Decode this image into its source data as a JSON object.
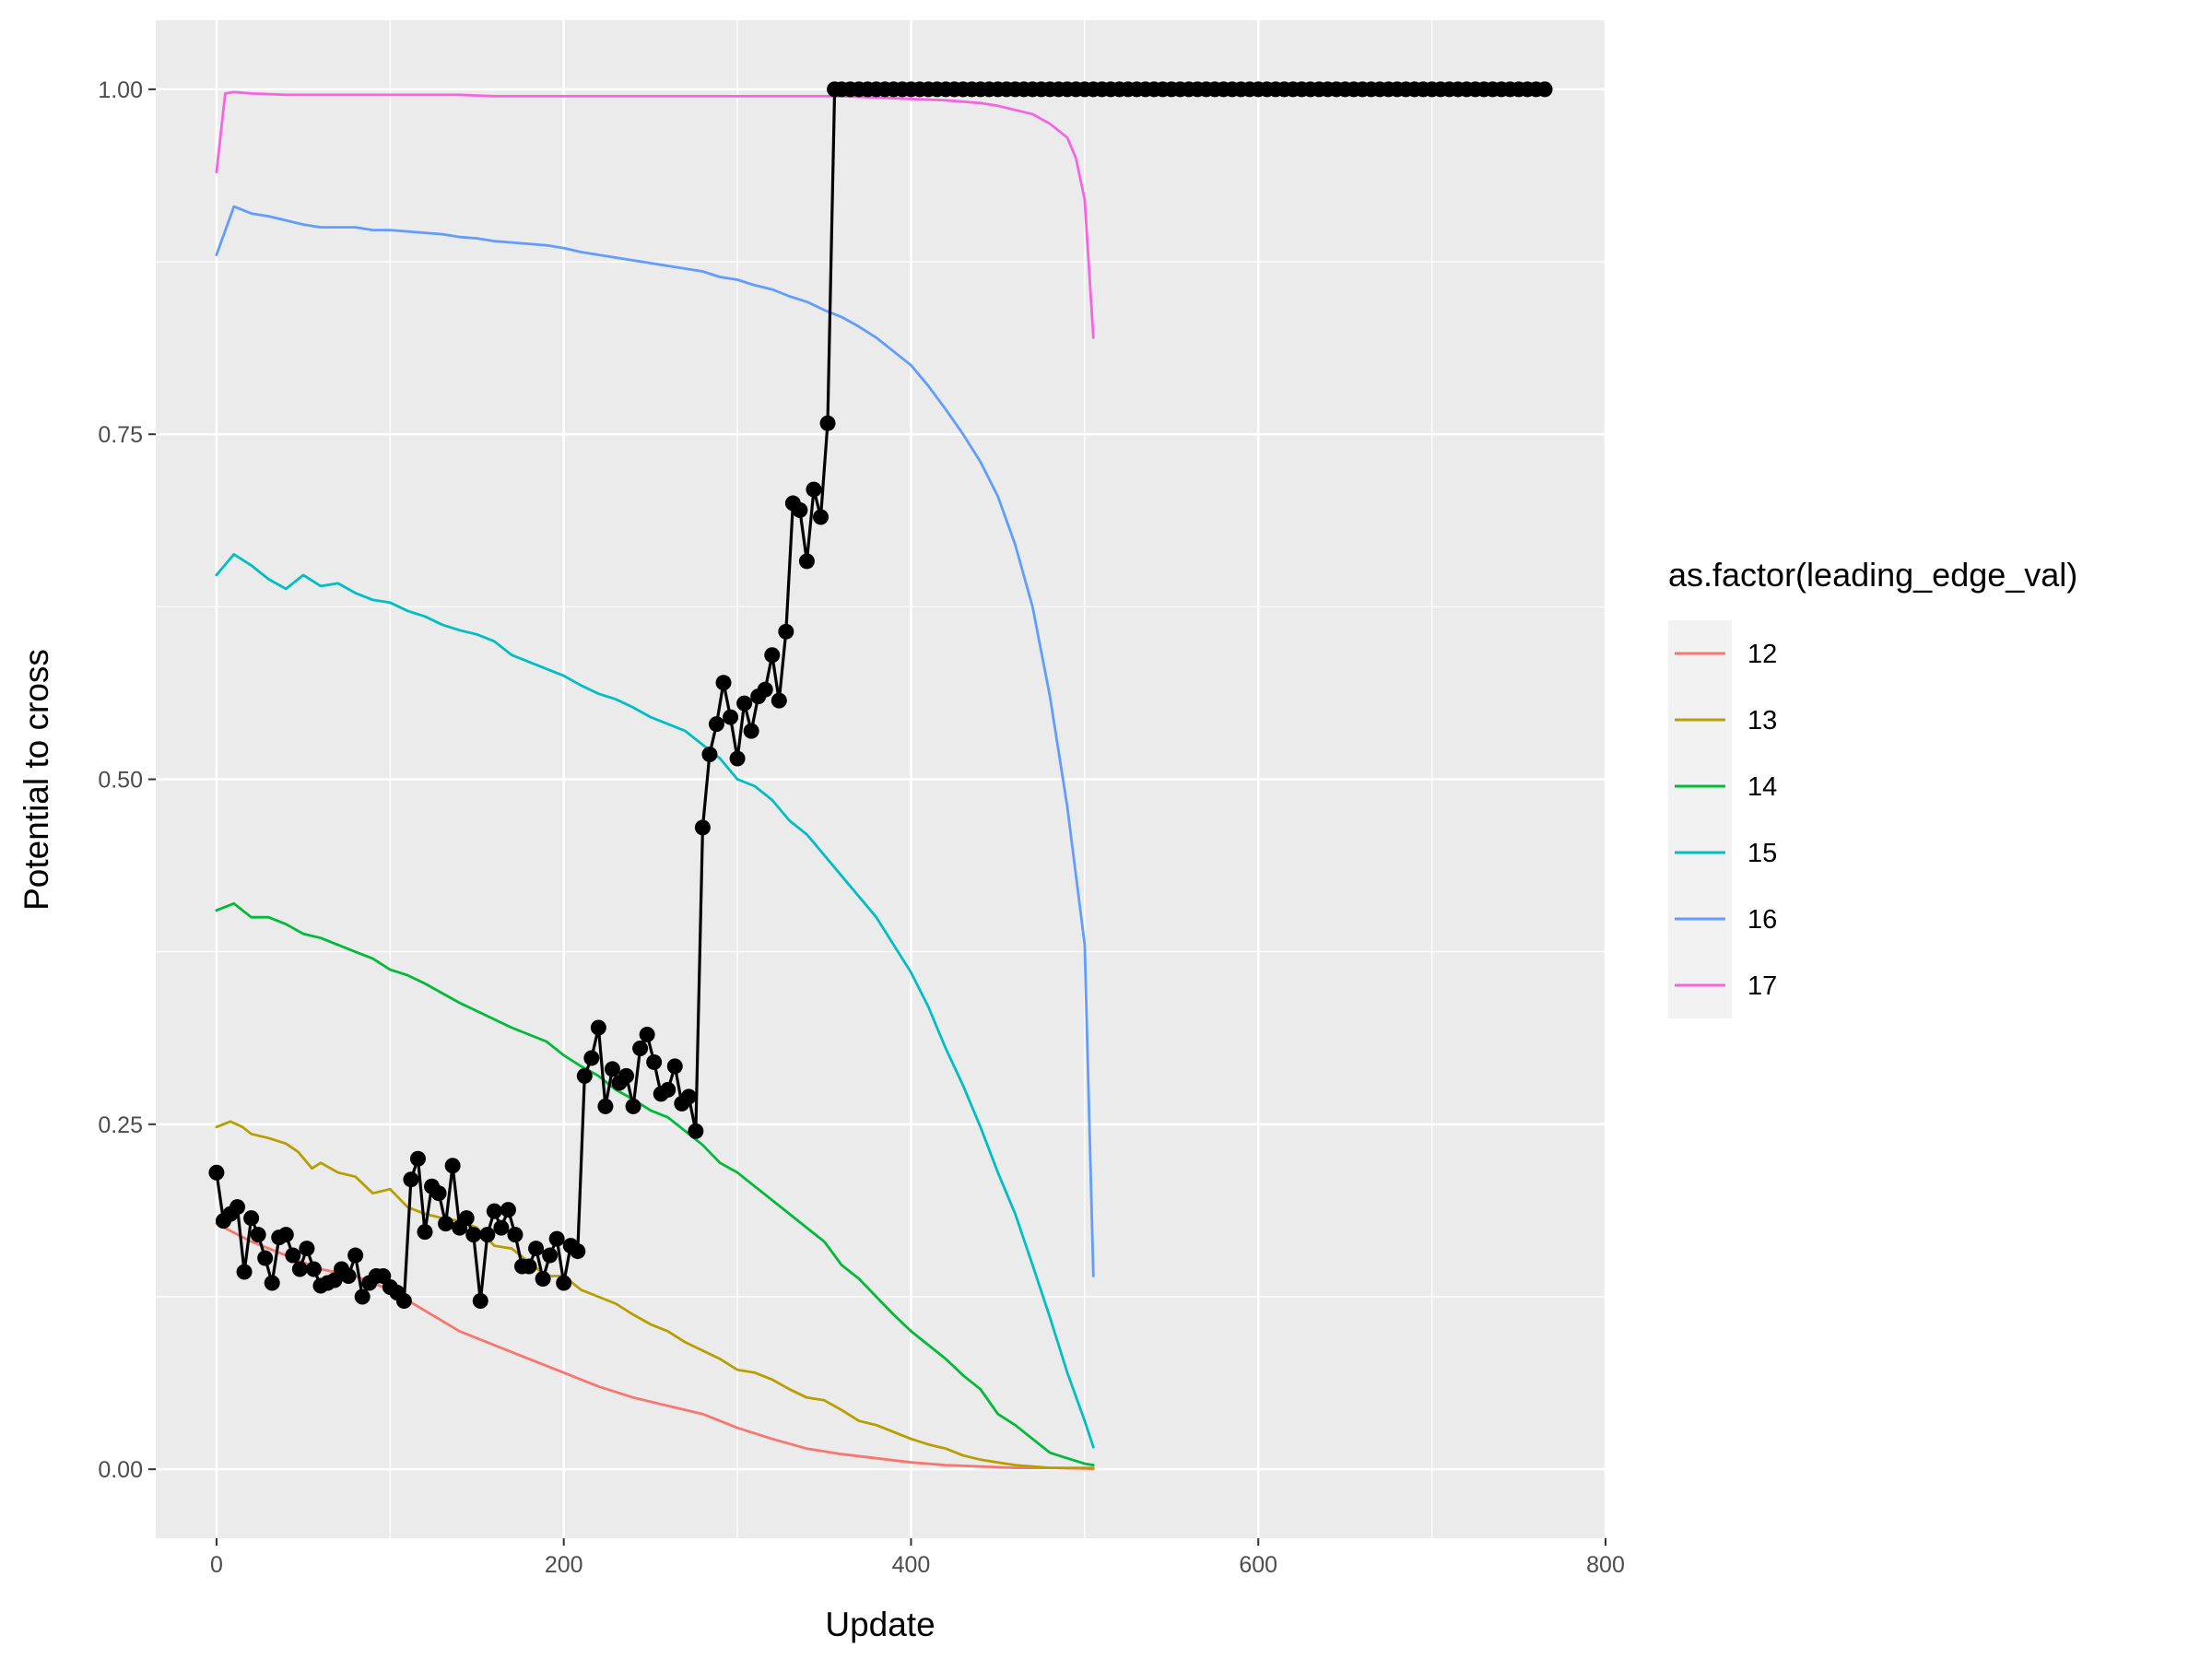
{
  "chart_data": {
    "type": "line",
    "xlabel": "Update",
    "ylabel": "Potential to cross",
    "xlim": [
      -35,
      800
    ],
    "ylim": [
      -0.05,
      1.05
    ],
    "x_ticks": [
      0,
      200,
      400,
      600,
      800
    ],
    "x_tick_labels": [
      "0",
      "200",
      "400",
      "600",
      "800"
    ],
    "y_ticks": [
      0,
      0.25,
      0.5,
      0.75,
      1.0
    ],
    "y_tick_labels": [
      "0.00",
      "0.25",
      "0.50",
      "0.75",
      "1.00"
    ],
    "grid": true,
    "legend": {
      "title": "as.factor(leading_edge_val)",
      "position": "right"
    },
    "series": [
      {
        "name": "12",
        "color": "#F8766D",
        "x": [
          0,
          20,
          40,
          60,
          80,
          100,
          120,
          140,
          160,
          180,
          200,
          220,
          240,
          260,
          280,
          300,
          320,
          340,
          360,
          380,
          400,
          420,
          440,
          460,
          480,
          500,
          505
        ],
        "y": [
          0.178,
          0.165,
          0.155,
          0.145,
          0.14,
          0.13,
          0.115,
          0.1,
          0.09,
          0.08,
          0.07,
          0.06,
          0.052,
          0.046,
          0.04,
          0.03,
          0.022,
          0.015,
          0.011,
          0.008,
          0.005,
          0.003,
          0.002,
          0.001,
          0.001,
          0.0005,
          0.0003
        ]
      },
      {
        "name": "13",
        "color": "#B79F00",
        "x": [
          0,
          8,
          15,
          20,
          30,
          40,
          47,
          55,
          60,
          70,
          80,
          90,
          100,
          110,
          120,
          130,
          140,
          150,
          160,
          170,
          180,
          190,
          200,
          210,
          220,
          230,
          240,
          250,
          260,
          270,
          280,
          290,
          300,
          310,
          320,
          330,
          340,
          350,
          360,
          370,
          380,
          390,
          400,
          410,
          420,
          430,
          440,
          450,
          460,
          470,
          480,
          490,
          500,
          505
        ],
        "y": [
          0.248,
          0.252,
          0.248,
          0.243,
          0.24,
          0.236,
          0.23,
          0.218,
          0.222,
          0.215,
          0.212,
          0.2,
          0.203,
          0.19,
          0.185,
          0.182,
          0.18,
          0.175,
          0.162,
          0.16,
          0.15,
          0.14,
          0.14,
          0.13,
          0.125,
          0.12,
          0.112,
          0.105,
          0.1,
          0.092,
          0.086,
          0.08,
          0.072,
          0.07,
          0.065,
          0.058,
          0.052,
          0.05,
          0.043,
          0.035,
          0.032,
          0.027,
          0.022,
          0.018,
          0.015,
          0.01,
          0.007,
          0.005,
          0.003,
          0.002,
          0.001,
          0.001,
          0.001,
          0.001
        ]
      },
      {
        "name": "14",
        "color": "#00BA38",
        "x": [
          0,
          10,
          20,
          30,
          40,
          50,
          60,
          70,
          80,
          90,
          100,
          110,
          120,
          130,
          140,
          150,
          160,
          170,
          180,
          190,
          200,
          210,
          220,
          230,
          240,
          250,
          260,
          270,
          280,
          290,
          300,
          310,
          320,
          330,
          340,
          350,
          360,
          370,
          380,
          390,
          400,
          410,
          420,
          430,
          440,
          450,
          460,
          470,
          480,
          490,
          500,
          505
        ],
        "y": [
          0.405,
          0.41,
          0.4,
          0.4,
          0.395,
          0.388,
          0.385,
          0.38,
          0.375,
          0.37,
          0.362,
          0.358,
          0.352,
          0.345,
          0.338,
          0.332,
          0.326,
          0.32,
          0.315,
          0.31,
          0.3,
          0.292,
          0.285,
          0.275,
          0.268,
          0.26,
          0.255,
          0.245,
          0.235,
          0.222,
          0.215,
          0.205,
          0.195,
          0.185,
          0.175,
          0.165,
          0.148,
          0.138,
          0.125,
          0.112,
          0.1,
          0.09,
          0.08,
          0.068,
          0.058,
          0.04,
          0.032,
          0.022,
          0.012,
          0.008,
          0.004,
          0.003
        ]
      },
      {
        "name": "15",
        "color": "#00BFC4",
        "x": [
          0,
          10,
          20,
          30,
          40,
          50,
          60,
          70,
          80,
          90,
          100,
          110,
          120,
          130,
          140,
          150,
          160,
          170,
          180,
          190,
          200,
          210,
          220,
          230,
          240,
          250,
          260,
          270,
          280,
          290,
          300,
          310,
          320,
          330,
          340,
          350,
          360,
          370,
          380,
          390,
          400,
          410,
          420,
          430,
          440,
          450,
          460,
          470,
          480,
          490,
          500,
          505
        ],
        "y": [
          0.648,
          0.663,
          0.655,
          0.645,
          0.638,
          0.648,
          0.64,
          0.642,
          0.635,
          0.63,
          0.628,
          0.622,
          0.618,
          0.612,
          0.608,
          0.605,
          0.6,
          0.59,
          0.585,
          0.58,
          0.575,
          0.568,
          0.562,
          0.558,
          0.552,
          0.545,
          0.54,
          0.535,
          0.525,
          0.515,
          0.5,
          0.495,
          0.485,
          0.47,
          0.46,
          0.445,
          0.43,
          0.415,
          0.4,
          0.38,
          0.36,
          0.335,
          0.305,
          0.278,
          0.248,
          0.215,
          0.185,
          0.148,
          0.11,
          0.07,
          0.035,
          0.016
        ]
      },
      {
        "name": "16",
        "color": "#619CFF",
        "x": [
          0,
          10,
          20,
          30,
          40,
          50,
          60,
          70,
          80,
          90,
          100,
          110,
          120,
          130,
          140,
          150,
          160,
          170,
          180,
          190,
          200,
          210,
          220,
          230,
          240,
          250,
          260,
          270,
          280,
          290,
          300,
          310,
          320,
          330,
          340,
          350,
          360,
          370,
          380,
          390,
          400,
          410,
          420,
          430,
          440,
          450,
          460,
          470,
          480,
          490,
          500,
          505
        ],
        "y": [
          0.88,
          0.915,
          0.91,
          0.908,
          0.905,
          0.902,
          0.9,
          0.9,
          0.9,
          0.898,
          0.898,
          0.897,
          0.896,
          0.895,
          0.893,
          0.892,
          0.89,
          0.889,
          0.888,
          0.887,
          0.885,
          0.882,
          0.88,
          0.878,
          0.876,
          0.874,
          0.872,
          0.87,
          0.868,
          0.864,
          0.862,
          0.858,
          0.855,
          0.85,
          0.846,
          0.84,
          0.835,
          0.828,
          0.82,
          0.81,
          0.8,
          0.785,
          0.768,
          0.75,
          0.73,
          0.705,
          0.67,
          0.625,
          0.56,
          0.48,
          0.38,
          0.14
        ]
      },
      {
        "name": "17",
        "color": "#F564E3",
        "x": [
          0,
          5,
          10,
          20,
          40,
          60,
          80,
          100,
          120,
          140,
          160,
          180,
          200,
          220,
          240,
          260,
          280,
          300,
          320,
          340,
          360,
          380,
          400,
          420,
          440,
          450,
          460,
          470,
          480,
          490,
          495,
          500,
          505
        ],
        "y": [
          0.94,
          0.997,
          0.998,
          0.997,
          0.996,
          0.996,
          0.996,
          0.996,
          0.996,
          0.996,
          0.995,
          0.995,
          0.995,
          0.995,
          0.995,
          0.995,
          0.995,
          0.995,
          0.995,
          0.995,
          0.995,
          0.994,
          0.993,
          0.992,
          0.99,
          0.988,
          0.985,
          0.982,
          0.975,
          0.965,
          0.95,
          0.92,
          0.82
        ]
      },
      {
        "name": "",
        "color": "#000000",
        "points": true,
        "x": [
          0,
          4,
          8,
          12,
          16,
          20,
          24,
          28,
          32,
          36,
          40,
          44,
          48,
          52,
          56,
          60,
          64,
          68,
          72,
          76,
          80,
          84,
          88,
          92,
          96,
          100,
          104,
          108,
          112,
          116,
          120,
          124,
          128,
          132,
          136,
          140,
          144,
          148,
          152,
          156,
          160,
          164,
          168,
          172,
          176,
          180,
          184,
          188,
          192,
          196,
          200,
          204,
          208,
          212,
          216,
          220,
          224,
          228,
          232,
          236,
          240,
          244,
          248,
          252,
          256,
          260,
          264,
          268,
          272,
          276,
          280,
          284,
          288,
          292,
          296,
          300,
          304,
          308,
          312,
          316,
          320,
          324,
          328,
          332,
          336,
          340,
          344,
          348,
          352,
          356,
          360,
          765
        ],
        "y": [
          0.215,
          0.18,
          0.185,
          0.19,
          0.143,
          0.182,
          0.17,
          0.153,
          0.135,
          0.168,
          0.17,
          0.155,
          0.145,
          0.16,
          0.145,
          0.133,
          0.135,
          0.137,
          0.145,
          0.14,
          0.155,
          0.125,
          0.135,
          0.14,
          0.14,
          0.132,
          0.128,
          0.122,
          0.21,
          0.225,
          0.172,
          0.205,
          0.2,
          0.178,
          0.22,
          0.175,
          0.182,
          0.17,
          0.122,
          0.17,
          0.187,
          0.175,
          0.188,
          0.17,
          0.147,
          0.147,
          0.16,
          0.138,
          0.155,
          0.167,
          0.135,
          0.162,
          0.158,
          0.285,
          0.298,
          0.32,
          0.263,
          0.29,
          0.28,
          0.285,
          0.263,
          0.305,
          0.315,
          0.295,
          0.272,
          0.275,
          0.292,
          0.265,
          0.27,
          0.245,
          0.465,
          0.518,
          0.54,
          0.57,
          0.545,
          0.515,
          0.555,
          0.535,
          0.56,
          0.565,
          0.59,
          0.557,
          0.607,
          0.7,
          0.695,
          0.658,
          0.71,
          0.69,
          0.758,
          1.0,
          1.0,
          1.0
        ]
      }
    ]
  }
}
